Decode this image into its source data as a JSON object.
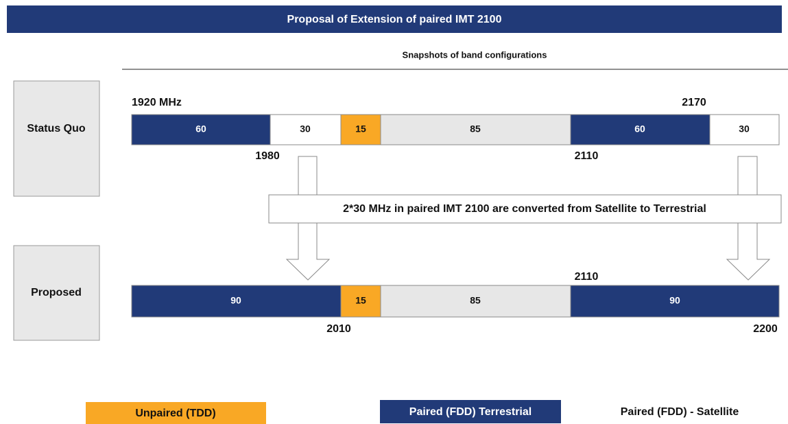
{
  "header": {
    "title": "Proposal of Extension of paired IMT 2100",
    "subtitle": "Snapshots of band configurations"
  },
  "rows": [
    {
      "label": "Status Quo",
      "segments": [
        "60",
        "30",
        "15",
        "85",
        "60",
        "30"
      ],
      "markers": [
        "1920 MHz",
        "2170",
        "1980",
        "2110"
      ]
    },
    {
      "label": "Proposed",
      "segments": [
        "90",
        "15",
        "85",
        "90"
      ],
      "markers": [
        "2110",
        "2010",
        "2200"
      ]
    }
  ],
  "callout": "2*30 MHz in paired IMT 2100 are converted from Satellite to Terrestrial",
  "legend": [
    "Unpaired (TDD)",
    "Paired (FDD) Terrestrial",
    "Paired (FDD) - Satellite"
  ]
}
